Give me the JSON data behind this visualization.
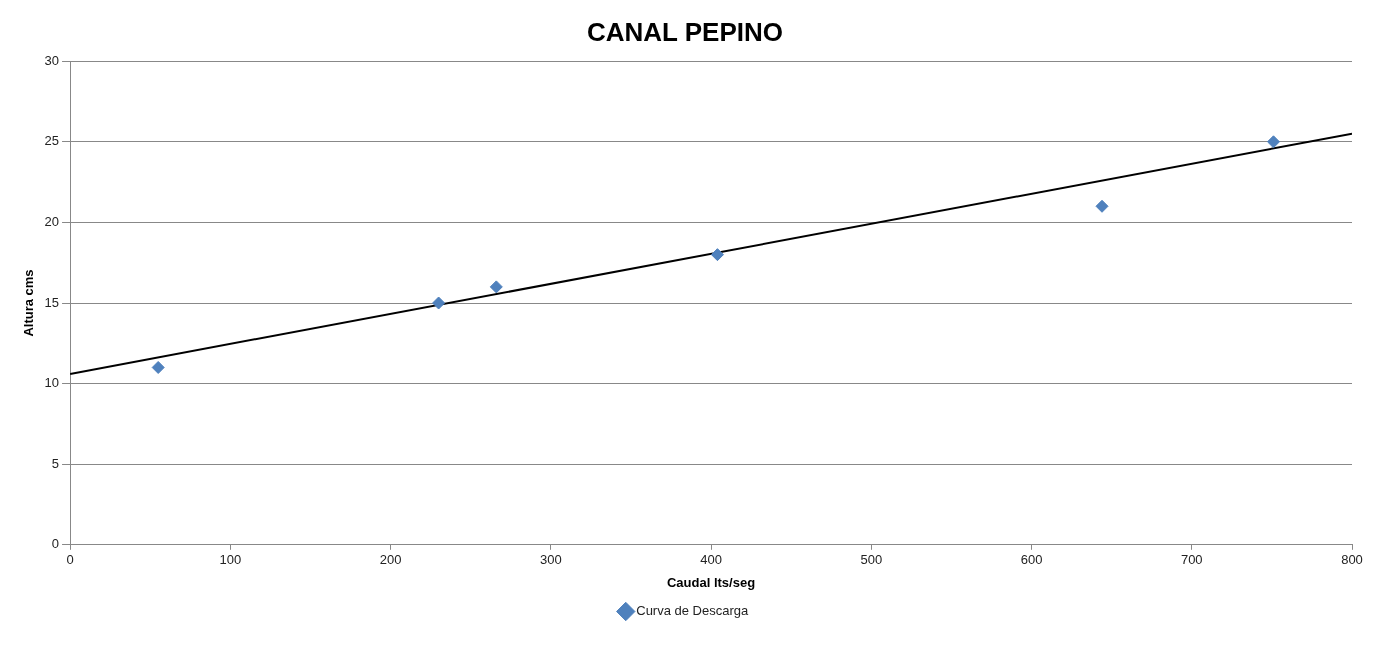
{
  "chart_data": {
    "type": "scatter",
    "title": "CANAL PEPINO",
    "xlabel": "Caudal lts/seg",
    "ylabel": "Altura cms",
    "xlim": [
      0,
      800
    ],
    "ylim": [
      0,
      30
    ],
    "xticks": [
      0,
      100,
      200,
      300,
      400,
      500,
      600,
      700,
      800
    ],
    "yticks": [
      0,
      5,
      10,
      15,
      20,
      25,
      30
    ],
    "grid": "y",
    "legend": "bottom",
    "marker": "diamond",
    "series": [
      {
        "name": "Curva de Descarga",
        "color": "#4f81bd",
        "x": [
          55,
          230,
          266,
          404,
          644,
          751
        ],
        "values": [
          11,
          15,
          16,
          18,
          21,
          25
        ]
      },
      {
        "type": "line",
        "color": "#000000",
        "marker": "none",
        "line_style": "solid",
        "x": [
          0,
          800
        ],
        "values": [
          10.6,
          25.5
        ]
      }
    ]
  }
}
